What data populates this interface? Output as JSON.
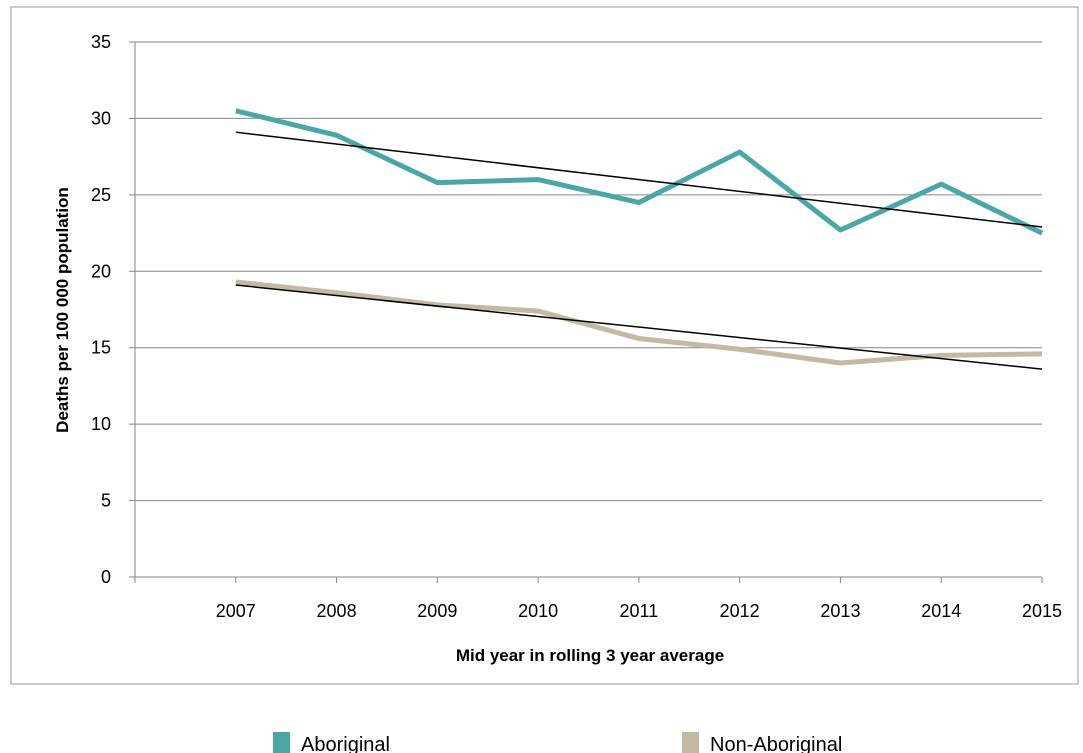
{
  "chart_data": {
    "type": "line",
    "xlabel": "Mid year in rolling 3 year average",
    "ylabel": "Deaths per 100 000 population",
    "categories": [
      "2007",
      "2008",
      "2009",
      "2010",
      "2011",
      "2012",
      "2013",
      "2014",
      "2015"
    ],
    "ylim": [
      0,
      35
    ],
    "yticks": [
      0,
      5,
      10,
      15,
      20,
      25,
      30,
      35
    ],
    "grid": "horizontal",
    "legend_position": "bottom",
    "series": [
      {
        "name": "Aboriginal",
        "color": "#4BA7A6",
        "values": [
          30.5,
          28.9,
          25.8,
          26.0,
          24.5,
          27.8,
          22.7,
          25.7,
          22.5
        ]
      },
      {
        "name": "Non-Aboriginal",
        "color": "#C4B9A2",
        "values": [
          19.3,
          18.6,
          17.8,
          17.4,
          15.6,
          14.9,
          14.0,
          14.5,
          14.6
        ]
      }
    ],
    "trendlines": [
      {
        "series": "Aboriginal",
        "color": "#000000",
        "start": 29.1,
        "end": 22.9
      },
      {
        "series": "Non-Aboriginal",
        "color": "#000000",
        "start": 19.1,
        "end": 13.6
      }
    ]
  }
}
